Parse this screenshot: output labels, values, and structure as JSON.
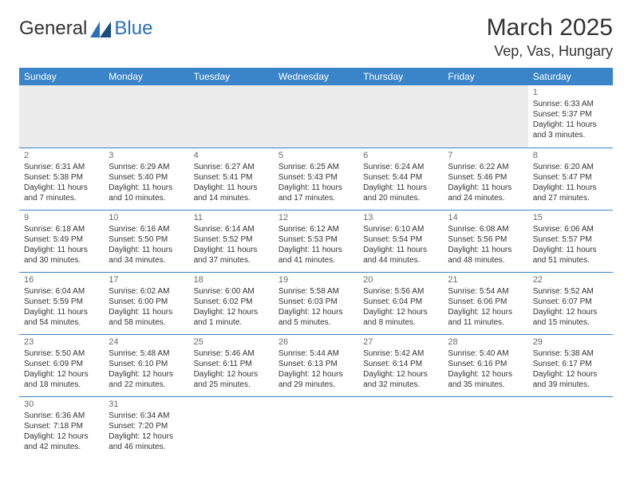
{
  "brand": {
    "general": "General",
    "blue": "Blue"
  },
  "title": "March 2025",
  "location": "Vep, Vas, Hungary",
  "colors": {
    "header_bg": "#3a85c9",
    "header_text": "#ffffff",
    "daynum": "#6a6a6a",
    "body_text": "#333333",
    "row_border": "#3a85c9",
    "empty_bg": "#ececec",
    "logo_blue": "#2d6fb5"
  },
  "weekdays": [
    "Sunday",
    "Monday",
    "Tuesday",
    "Wednesday",
    "Thursday",
    "Friday",
    "Saturday"
  ],
  "weeks": [
    [
      null,
      null,
      null,
      null,
      null,
      null,
      {
        "n": "1",
        "sr": "Sunrise: 6:33 AM",
        "ss": "Sunset: 5:37 PM",
        "d1": "Daylight: 11 hours",
        "d2": "and 3 minutes."
      }
    ],
    [
      {
        "n": "2",
        "sr": "Sunrise: 6:31 AM",
        "ss": "Sunset: 5:38 PM",
        "d1": "Daylight: 11 hours",
        "d2": "and 7 minutes."
      },
      {
        "n": "3",
        "sr": "Sunrise: 6:29 AM",
        "ss": "Sunset: 5:40 PM",
        "d1": "Daylight: 11 hours",
        "d2": "and 10 minutes."
      },
      {
        "n": "4",
        "sr": "Sunrise: 6:27 AM",
        "ss": "Sunset: 5:41 PM",
        "d1": "Daylight: 11 hours",
        "d2": "and 14 minutes."
      },
      {
        "n": "5",
        "sr": "Sunrise: 6:25 AM",
        "ss": "Sunset: 5:43 PM",
        "d1": "Daylight: 11 hours",
        "d2": "and 17 minutes."
      },
      {
        "n": "6",
        "sr": "Sunrise: 6:24 AM",
        "ss": "Sunset: 5:44 PM",
        "d1": "Daylight: 11 hours",
        "d2": "and 20 minutes."
      },
      {
        "n": "7",
        "sr": "Sunrise: 6:22 AM",
        "ss": "Sunset: 5:46 PM",
        "d1": "Daylight: 11 hours",
        "d2": "and 24 minutes."
      },
      {
        "n": "8",
        "sr": "Sunrise: 6:20 AM",
        "ss": "Sunset: 5:47 PM",
        "d1": "Daylight: 11 hours",
        "d2": "and 27 minutes."
      }
    ],
    [
      {
        "n": "9",
        "sr": "Sunrise: 6:18 AM",
        "ss": "Sunset: 5:49 PM",
        "d1": "Daylight: 11 hours",
        "d2": "and 30 minutes."
      },
      {
        "n": "10",
        "sr": "Sunrise: 6:16 AM",
        "ss": "Sunset: 5:50 PM",
        "d1": "Daylight: 11 hours",
        "d2": "and 34 minutes."
      },
      {
        "n": "11",
        "sr": "Sunrise: 6:14 AM",
        "ss": "Sunset: 5:52 PM",
        "d1": "Daylight: 11 hours",
        "d2": "and 37 minutes."
      },
      {
        "n": "12",
        "sr": "Sunrise: 6:12 AM",
        "ss": "Sunset: 5:53 PM",
        "d1": "Daylight: 11 hours",
        "d2": "and 41 minutes."
      },
      {
        "n": "13",
        "sr": "Sunrise: 6:10 AM",
        "ss": "Sunset: 5:54 PM",
        "d1": "Daylight: 11 hours",
        "d2": "and 44 minutes."
      },
      {
        "n": "14",
        "sr": "Sunrise: 6:08 AM",
        "ss": "Sunset: 5:56 PM",
        "d1": "Daylight: 11 hours",
        "d2": "and 48 minutes."
      },
      {
        "n": "15",
        "sr": "Sunrise: 6:06 AM",
        "ss": "Sunset: 5:57 PM",
        "d1": "Daylight: 11 hours",
        "d2": "and 51 minutes."
      }
    ],
    [
      {
        "n": "16",
        "sr": "Sunrise: 6:04 AM",
        "ss": "Sunset: 5:59 PM",
        "d1": "Daylight: 11 hours",
        "d2": "and 54 minutes."
      },
      {
        "n": "17",
        "sr": "Sunrise: 6:02 AM",
        "ss": "Sunset: 6:00 PM",
        "d1": "Daylight: 11 hours",
        "d2": "and 58 minutes."
      },
      {
        "n": "18",
        "sr": "Sunrise: 6:00 AM",
        "ss": "Sunset: 6:02 PM",
        "d1": "Daylight: 12 hours",
        "d2": "and 1 minute."
      },
      {
        "n": "19",
        "sr": "Sunrise: 5:58 AM",
        "ss": "Sunset: 6:03 PM",
        "d1": "Daylight: 12 hours",
        "d2": "and 5 minutes."
      },
      {
        "n": "20",
        "sr": "Sunrise: 5:56 AM",
        "ss": "Sunset: 6:04 PM",
        "d1": "Daylight: 12 hours",
        "d2": "and 8 minutes."
      },
      {
        "n": "21",
        "sr": "Sunrise: 5:54 AM",
        "ss": "Sunset: 6:06 PM",
        "d1": "Daylight: 12 hours",
        "d2": "and 11 minutes."
      },
      {
        "n": "22",
        "sr": "Sunrise: 5:52 AM",
        "ss": "Sunset: 6:07 PM",
        "d1": "Daylight: 12 hours",
        "d2": "and 15 minutes."
      }
    ],
    [
      {
        "n": "23",
        "sr": "Sunrise: 5:50 AM",
        "ss": "Sunset: 6:09 PM",
        "d1": "Daylight: 12 hours",
        "d2": "and 18 minutes."
      },
      {
        "n": "24",
        "sr": "Sunrise: 5:48 AM",
        "ss": "Sunset: 6:10 PM",
        "d1": "Daylight: 12 hours",
        "d2": "and 22 minutes."
      },
      {
        "n": "25",
        "sr": "Sunrise: 5:46 AM",
        "ss": "Sunset: 6:11 PM",
        "d1": "Daylight: 12 hours",
        "d2": "and 25 minutes."
      },
      {
        "n": "26",
        "sr": "Sunrise: 5:44 AM",
        "ss": "Sunset: 6:13 PM",
        "d1": "Daylight: 12 hours",
        "d2": "and 29 minutes."
      },
      {
        "n": "27",
        "sr": "Sunrise: 5:42 AM",
        "ss": "Sunset: 6:14 PM",
        "d1": "Daylight: 12 hours",
        "d2": "and 32 minutes."
      },
      {
        "n": "28",
        "sr": "Sunrise: 5:40 AM",
        "ss": "Sunset: 6:16 PM",
        "d1": "Daylight: 12 hours",
        "d2": "and 35 minutes."
      },
      {
        "n": "29",
        "sr": "Sunrise: 5:38 AM",
        "ss": "Sunset: 6:17 PM",
        "d1": "Daylight: 12 hours",
        "d2": "and 39 minutes."
      }
    ],
    [
      {
        "n": "30",
        "sr": "Sunrise: 6:36 AM",
        "ss": "Sunset: 7:18 PM",
        "d1": "Daylight: 12 hours",
        "d2": "and 42 minutes."
      },
      {
        "n": "31",
        "sr": "Sunrise: 6:34 AM",
        "ss": "Sunset: 7:20 PM",
        "d1": "Daylight: 12 hours",
        "d2": "and 46 minutes."
      },
      null,
      null,
      null,
      null,
      null
    ]
  ]
}
